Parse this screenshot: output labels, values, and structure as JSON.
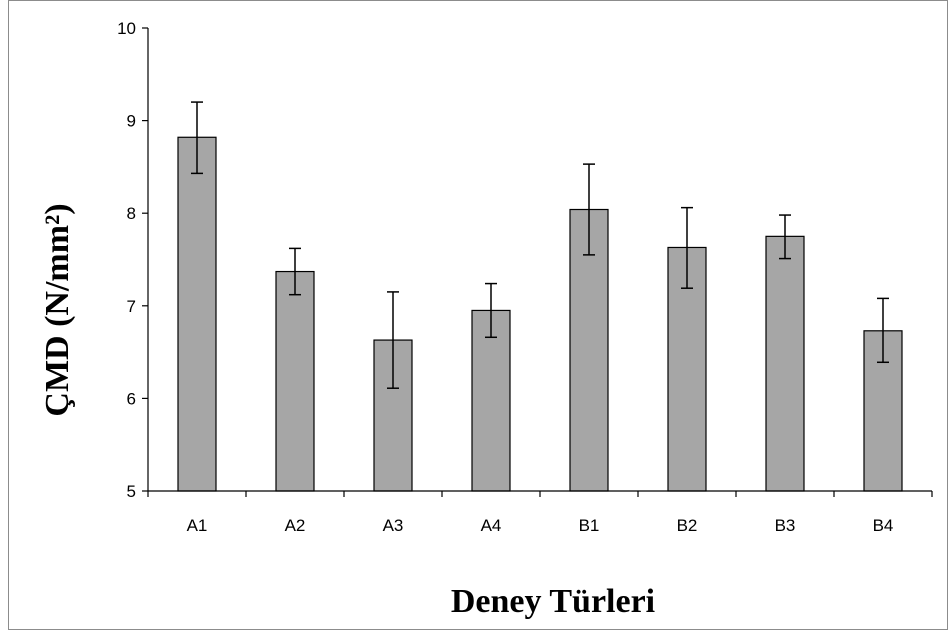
{
  "chart_data": {
    "type": "bar",
    "categories": [
      "A1",
      "A2",
      "A3",
      "A4",
      "B1",
      "B2",
      "B3",
      "B4"
    ],
    "values": [
      8.82,
      7.37,
      6.63,
      6.95,
      8.04,
      7.63,
      7.75,
      6.73
    ],
    "error_upper": [
      9.2,
      7.62,
      7.15,
      7.24,
      8.53,
      8.06,
      7.98,
      7.08
    ],
    "error_lower": [
      8.43,
      7.12,
      6.11,
      6.66,
      7.55,
      7.19,
      7.51,
      6.39
    ],
    "ylim": [
      5,
      10
    ],
    "yticks": [
      "5",
      "6",
      "7",
      "8",
      "9",
      "10"
    ],
    "xlabel": "Deney Türleri",
    "ylabel": "ÇMD (N/mm²)",
    "grid": false,
    "bar_color": "#a6a6a6",
    "bar_edge_color": "#000000"
  }
}
